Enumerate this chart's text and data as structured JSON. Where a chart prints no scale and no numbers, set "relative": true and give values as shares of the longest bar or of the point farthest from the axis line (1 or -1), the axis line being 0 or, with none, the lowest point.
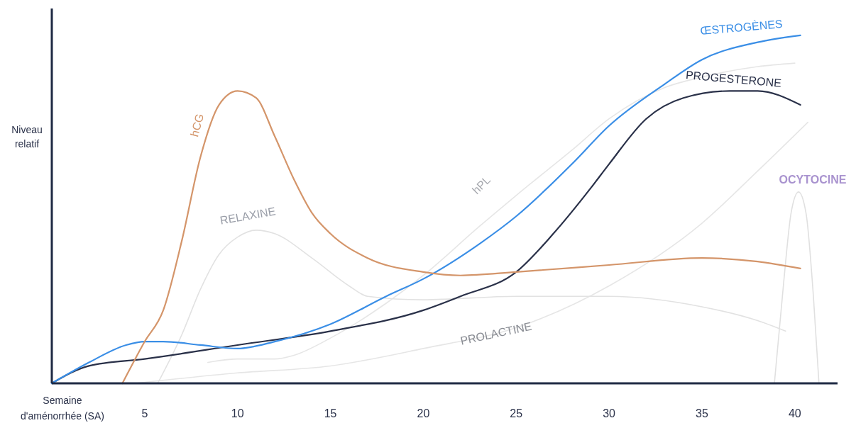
{
  "chart_data": {
    "type": "line",
    "relative": true,
    "xlabel": "Semaine\nd'aménorrhée (SA)",
    "ylabel": "Niveau\nrelatif",
    "xlim": [
      0,
      42.3
    ],
    "xticks": [
      5,
      10,
      15,
      20,
      25,
      30,
      35,
      40
    ],
    "series": [
      {
        "name": "hCG",
        "color": "#d4956a",
        "x": [
          3.8,
          5,
          6,
          7,
          8,
          9,
          10,
          11,
          12,
          13,
          14,
          15,
          17,
          20,
          22,
          25,
          30,
          35,
          38,
          40.3
        ],
        "values": [
          0,
          0.12,
          0.21,
          0.41,
          0.65,
          0.8,
          0.84,
          0.82,
          0.71,
          0.59,
          0.49,
          0.43,
          0.36,
          0.32,
          0.31,
          0.32,
          0.34,
          0.36,
          0.35,
          0.33
        ]
      },
      {
        "name": "ŒSTROGÈNES",
        "color": "#3a8ee6",
        "x": [
          0,
          2,
          4,
          5,
          6,
          8,
          10,
          12,
          15,
          18,
          20,
          23,
          25,
          28,
          30,
          33,
          35,
          38,
          40.3
        ],
        "values": [
          0,
          0.06,
          0.11,
          0.12,
          0.12,
          0.11,
          0.1,
          0.12,
          0.17,
          0.25,
          0.3,
          0.4,
          0.48,
          0.63,
          0.74,
          0.86,
          0.93,
          0.98,
          1
        ]
      },
      {
        "name": "PROGESTERONE",
        "color": "#2a3149",
        "x": [
          0,
          2,
          5,
          10,
          15,
          20,
          22,
          25,
          27,
          29,
          30,
          32,
          34,
          36.5,
          38,
          40.3
        ],
        "values": [
          0,
          0.05,
          0.07,
          0.11,
          0.15,
          0.21,
          0.25,
          0.32,
          0.43,
          0.56,
          0.63,
          0.76,
          0.82,
          0.84,
          0.84,
          0.8
        ]
      },
      {
        "name": "RELAXINE",
        "color": "#e2e2e2",
        "x": [
          5.7,
          7,
          8,
          9,
          10,
          11,
          12,
          14,
          16,
          17,
          20,
          25,
          30,
          35,
          38,
          39.5
        ],
        "values": [
          0,
          0.14,
          0.27,
          0.37,
          0.42,
          0.44,
          0.43,
          0.36,
          0.28,
          0.25,
          0.24,
          0.25,
          0.25,
          0.22,
          0.18,
          0.15
        ]
      },
      {
        "name": "hPL",
        "color": "#e6e6e6",
        "x": [
          8.4,
          10,
          12,
          13,
          15,
          18,
          20,
          23,
          25,
          28,
          30,
          33,
          35,
          38,
          40
        ],
        "values": [
          0.06,
          0.07,
          0.07,
          0.08,
          0.13,
          0.23,
          0.31,
          0.45,
          0.54,
          0.67,
          0.76,
          0.85,
          0.88,
          0.91,
          0.92
        ]
      },
      {
        "name": "PROLACTINE",
        "color": "#e6e6e6",
        "x": [
          4.5,
          10,
          15,
          20,
          25,
          30,
          35,
          38,
          40.7
        ],
        "values": [
          0,
          0.03,
          0.05,
          0.1,
          0.16,
          0.28,
          0.46,
          0.61,
          0.75
        ]
      },
      {
        "name": "OCYTOCINE",
        "color": "#e0e0e0",
        "x": [
          38.9,
          39.4,
          39.8,
          40.2,
          40.6,
          41,
          41.3
        ],
        "values": [
          0,
          0.29,
          0.49,
          0.55,
          0.49,
          0.25,
          0
        ]
      }
    ]
  }
}
